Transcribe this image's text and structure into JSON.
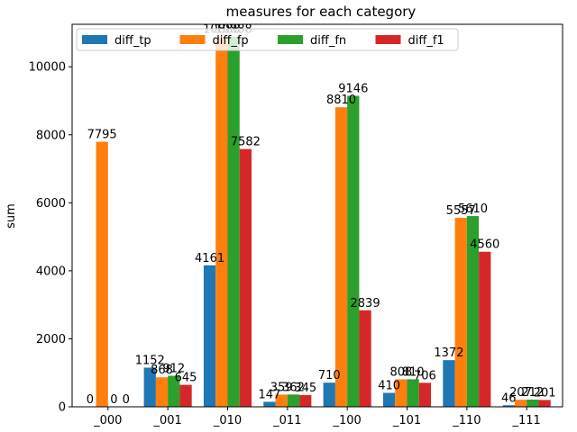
{
  "chart_data": {
    "type": "bar",
    "title": "measures for each category",
    "xlabel": "",
    "ylabel": "sum",
    "categories": [
      "_000",
      "_001",
      "_010",
      "_011",
      "_100",
      "_101",
      "_110",
      "_111"
    ],
    "series": [
      {
        "name": "diff_tp",
        "color": "#1f77b4",
        "values": [
          0,
          1152,
          4161,
          147,
          710,
          410,
          1372,
          46
        ]
      },
      {
        "name": "diff_fp",
        "color": "#ff7f0e",
        "values": [
          7795,
          868,
          10888,
          359,
          8810,
          808,
          5557,
          207
        ]
      },
      {
        "name": "diff_fn",
        "color": "#2ca02c",
        "values": [
          0,
          912,
          10888,
          362,
          9146,
          810,
          5610,
          212
        ]
      },
      {
        "name": "diff_f1",
        "color": "#d62728",
        "values": [
          0,
          645,
          7582,
          345,
          2839,
          706,
          4560,
          201
        ]
      }
    ],
    "data_labels": [
      [
        "0",
        "1152",
        "4161",
        "147",
        "710",
        "410",
        "1372",
        "46"
      ],
      [
        "7795",
        "868",
        "10888",
        "359",
        "8810",
        "808",
        "5557",
        "207"
      ],
      [
        "0",
        "912",
        "10888",
        "362",
        "9146",
        "810",
        "5610",
        "212"
      ],
      [
        "0",
        "645",
        "7582",
        "345",
        "2839",
        "706",
        "4560",
        "201"
      ]
    ],
    "ylim": [
      0,
      11250
    ],
    "yticks": [
      0,
      2000,
      4000,
      6000,
      8000,
      10000
    ],
    "grid": false,
    "legend": "top, single row"
  }
}
